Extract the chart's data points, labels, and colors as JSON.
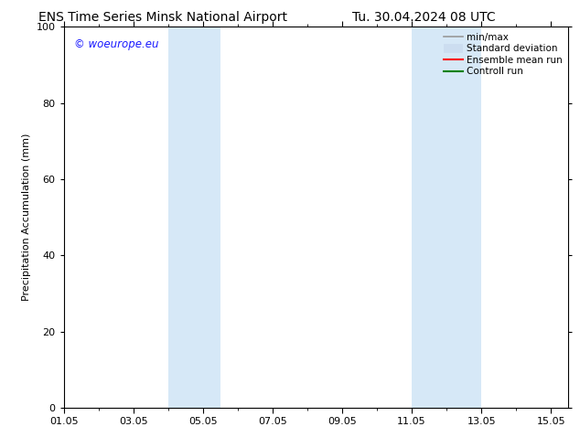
{
  "title_left": "ENS Time Series Minsk National Airport",
  "title_right": "Tu. 30.04.2024 08 UTC",
  "ylabel": "Precipitation Accumulation (mm)",
  "xlim": [
    1.0,
    15.5
  ],
  "ylim": [
    0,
    100
  ],
  "yticks": [
    0,
    20,
    40,
    60,
    80,
    100
  ],
  "xtick_labels": [
    "01.05",
    "03.05",
    "05.05",
    "07.05",
    "09.05",
    "11.05",
    "13.05",
    "15.05"
  ],
  "xtick_positions": [
    1,
    3,
    5,
    7,
    9,
    11,
    13,
    15
  ],
  "shaded_bands": [
    {
      "start": 4.0,
      "end": 5.5,
      "color": "#d6e8f7"
    },
    {
      "start": 11.0,
      "end": 13.0,
      "color": "#d6e8f7"
    }
  ],
  "watermark_text": "© woeurope.eu",
  "watermark_color": "#1a1aff",
  "legend_items": [
    {
      "label": "min/max",
      "color": "#999999",
      "lw": 1.2,
      "style": "line"
    },
    {
      "label": "Standard deviation",
      "color": "#ccddf0",
      "lw": 7,
      "style": "thick"
    },
    {
      "label": "Ensemble mean run",
      "color": "#ff0000",
      "lw": 1.5,
      "style": "line"
    },
    {
      "label": "Controll run",
      "color": "#008000",
      "lw": 1.5,
      "style": "line"
    }
  ],
  "background_color": "#ffffff",
  "title_fontsize": 10,
  "axis_fontsize": 8,
  "legend_fontsize": 7.5,
  "watermark_fontsize": 8.5
}
